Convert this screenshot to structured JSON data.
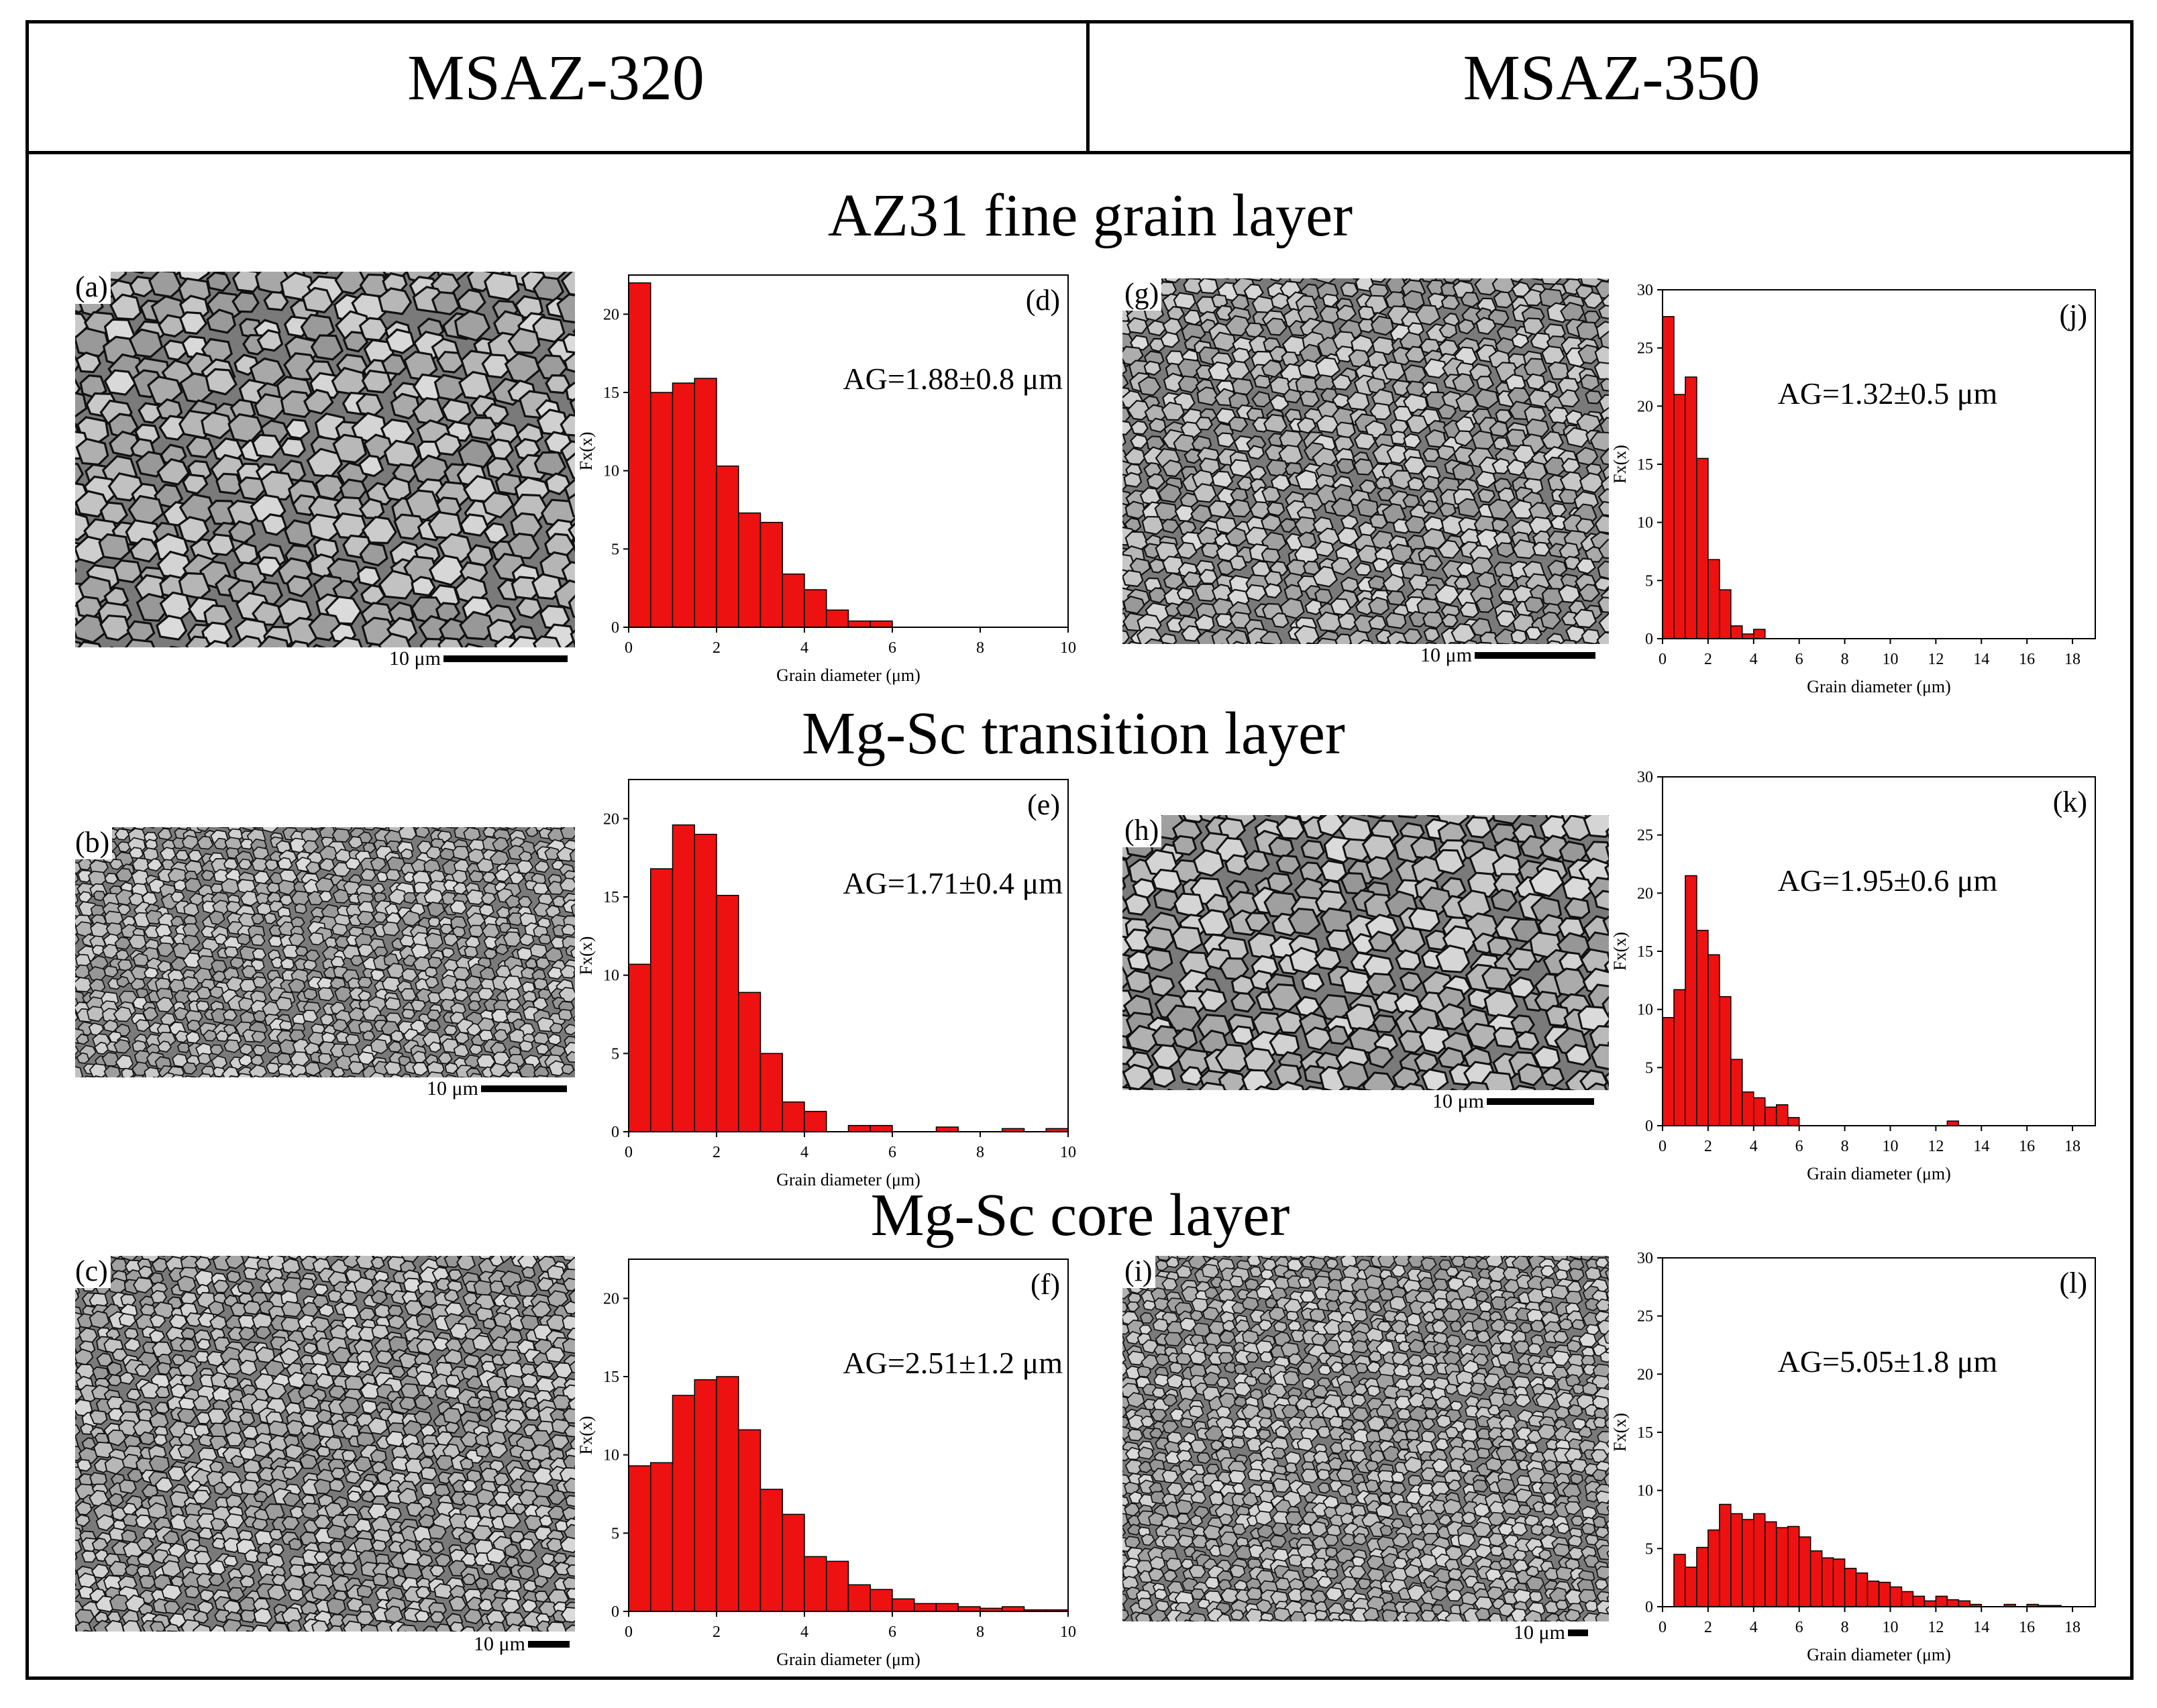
{
  "columns": {
    "left_title": "MSAZ-320",
    "right_title": "MSAZ-350"
  },
  "sections": {
    "top": "AZ31 fine grain layer",
    "middle": "Mg-Sc transition layer",
    "bottom": "Mg-Sc core layer"
  },
  "micrographs": [
    {
      "label": "(a)",
      "scale": "10 μm"
    },
    {
      "label": "(b)",
      "scale": "10 μm"
    },
    {
      "label": "(c)",
      "scale": "10 μm"
    },
    {
      "label": "(g)",
      "scale": "10 μm"
    },
    {
      "label": "(h)",
      "scale": "10 μm"
    },
    {
      "label": "(i)",
      "scale": "10 μm"
    }
  ],
  "chart_data": [
    {
      "id": "d",
      "type": "bar",
      "label": "(d)",
      "annotation": "AG=1.88±0.8 μm",
      "xlabel": "Grain diameter (μm)",
      "ylabel": "Fx(x)",
      "xlim": [
        0,
        10
      ],
      "ylim": [
        0,
        22.5
      ],
      "xticks": [
        0,
        2,
        4,
        6,
        8,
        10
      ],
      "yticks": [
        0,
        5,
        10,
        15,
        20
      ],
      "bin_width": 0.5,
      "x": [
        0.25,
        0.75,
        1.25,
        1.75,
        2.25,
        2.75,
        3.25,
        3.75,
        4.25,
        4.75,
        5.25,
        5.75
      ],
      "values": [
        22,
        15,
        15.6,
        15.9,
        10.3,
        7.3,
        6.7,
        3.4,
        2.4,
        1.1,
        0.4,
        0.4
      ]
    },
    {
      "id": "e",
      "type": "bar",
      "label": "(e)",
      "annotation": "AG=1.71±0.4 μm",
      "xlabel": "Grain diameter (μm)",
      "ylabel": "Fx(x)",
      "xlim": [
        0,
        10
      ],
      "ylim": [
        0,
        22.5
      ],
      "xticks": [
        0,
        2,
        4,
        6,
        8,
        10
      ],
      "yticks": [
        0,
        5,
        10,
        15,
        20
      ],
      "bin_width": 0.5,
      "x": [
        0.25,
        0.75,
        1.25,
        1.75,
        2.25,
        2.75,
        3.25,
        3.75,
        4.25,
        5.25,
        5.75,
        7.25,
        8.75,
        9.75
      ],
      "values": [
        10.7,
        16.8,
        19.6,
        19,
        15.1,
        8.9,
        5,
        1.9,
        1.3,
        0.4,
        0.4,
        0.3,
        0.2,
        0.2
      ]
    },
    {
      "id": "f",
      "type": "bar",
      "label": "(f)",
      "annotation": "AG=2.51±1.2 μm",
      "xlabel": "Grain diameter (μm)",
      "ylabel": "Fx(x)",
      "xlim": [
        0,
        10
      ],
      "ylim": [
        0,
        22.5
      ],
      "xticks": [
        0,
        2,
        4,
        6,
        8,
        10
      ],
      "yticks": [
        0,
        5,
        10,
        15,
        20
      ],
      "bin_width": 0.5,
      "x": [
        0.25,
        0.75,
        1.25,
        1.75,
        2.25,
        2.75,
        3.25,
        3.75,
        4.25,
        4.75,
        5.25,
        5.75,
        6.25,
        6.75,
        7.25,
        7.75,
        8.25,
        8.75,
        9.25,
        9.75
      ],
      "values": [
        9.3,
        9.5,
        13.8,
        14.8,
        15,
        11.6,
        7.8,
        6.2,
        3.5,
        3.2,
        1.7,
        1.4,
        0.8,
        0.5,
        0.5,
        0.3,
        0.2,
        0.3,
        0.1,
        0.1
      ]
    },
    {
      "id": "j",
      "type": "bar",
      "label": "(j)",
      "annotation": "AG=1.32±0.5 μm",
      "xlabel": "Grain diameter (μm)",
      "ylabel": "Fx(x)",
      "xlim": [
        0,
        19
      ],
      "ylim": [
        0,
        30
      ],
      "xticks": [
        0,
        2,
        4,
        6,
        8,
        10,
        12,
        14,
        16,
        18
      ],
      "yticks": [
        0,
        5,
        10,
        15,
        20,
        25,
        30
      ],
      "bin_width": 0.5,
      "x": [
        0.25,
        0.75,
        1.25,
        1.75,
        2.25,
        2.75,
        3.25,
        3.75,
        4.25
      ],
      "values": [
        27.7,
        21,
        22.5,
        15.5,
        6.8,
        4.2,
        1.1,
        0.4,
        0.8
      ]
    },
    {
      "id": "k",
      "type": "bar",
      "label": "(k)",
      "annotation": "AG=1.95±0.6 μm",
      "xlabel": "Grain diameter (μm)",
      "ylabel": "Fx(x)",
      "xlim": [
        0,
        19
      ],
      "ylim": [
        0,
        30
      ],
      "xticks": [
        0,
        2,
        4,
        6,
        8,
        10,
        12,
        14,
        16,
        18
      ],
      "yticks": [
        0,
        5,
        10,
        15,
        20,
        25,
        30
      ],
      "bin_width": 0.5,
      "x": [
        0.25,
        0.75,
        1.25,
        1.75,
        2.25,
        2.75,
        3.25,
        3.75,
        4.25,
        4.75,
        5.25,
        5.75,
        12.75
      ],
      "values": [
        9.3,
        11.7,
        21.5,
        16.8,
        14.7,
        11.1,
        5.7,
        2.9,
        2.4,
        1.6,
        1.8,
        0.7,
        0.4
      ]
    },
    {
      "id": "l",
      "type": "bar",
      "label": "(l)",
      "annotation": "AG=5.05±1.8 μm",
      "xlabel": "Grain diameter (μm)",
      "ylabel": "Fx(x)",
      "xlim": [
        0,
        19
      ],
      "ylim": [
        0,
        30
      ],
      "xticks": [
        0,
        2,
        4,
        6,
        8,
        10,
        12,
        14,
        16,
        18
      ],
      "yticks": [
        0,
        5,
        10,
        15,
        20,
        25,
        30
      ],
      "bin_width": 0.5,
      "x": [
        0.75,
        1.25,
        1.75,
        2.25,
        2.75,
        3.25,
        3.75,
        4.25,
        4.75,
        5.25,
        5.75,
        6.25,
        6.75,
        7.25,
        7.75,
        8.25,
        8.75,
        9.25,
        9.75,
        10.25,
        10.75,
        11.25,
        11.75,
        12.25,
        12.75,
        13.25,
        13.75,
        15.25,
        16.25,
        16.75,
        17.25
      ],
      "values": [
        4.5,
        3.4,
        5.1,
        6.6,
        8.8,
        8,
        7.5,
        8,
        7.3,
        6.8,
        6.9,
        6,
        4.8,
        4.2,
        4.1,
        3.3,
        2.9,
        2.2,
        2.1,
        1.7,
        1.3,
        0.9,
        0.5,
        0.9,
        0.6,
        0.5,
        0.2,
        0.2,
        0.2,
        0.1,
        0.1
      ]
    }
  ]
}
